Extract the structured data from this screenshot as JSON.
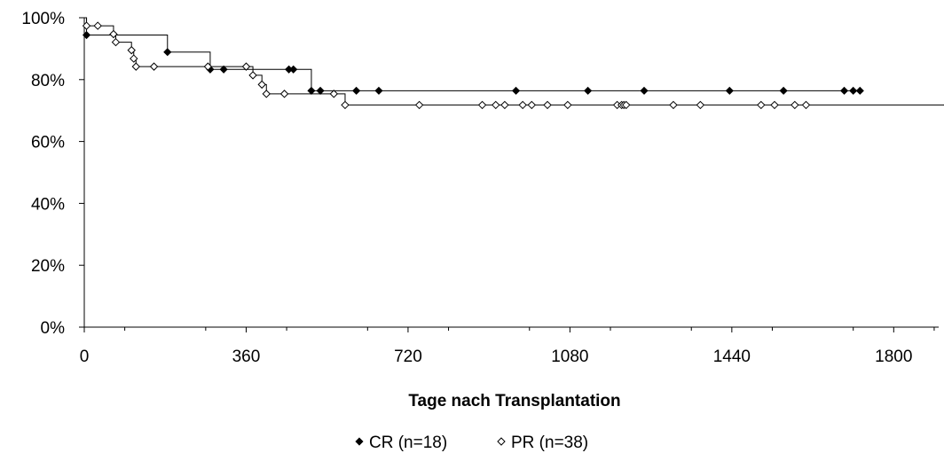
{
  "chart_data": {
    "type": "line",
    "step": true,
    "title": "",
    "xlabel": "Tage nach Transplantation",
    "ylabel": "",
    "xlim": [
      0,
      1900
    ],
    "ylim": [
      0,
      100
    ],
    "x_ticks": [
      0,
      360,
      720,
      1080,
      1440,
      1800
    ],
    "y_ticks": [
      0,
      20,
      40,
      60,
      80,
      100
    ],
    "y_tick_labels": [
      "0%",
      "20%",
      "40%",
      "60%",
      "80%",
      "100%"
    ],
    "grid": false,
    "legend_position": "bottom-center",
    "series": [
      {
        "name": "CR (n=18)",
        "marker": "filled-diamond",
        "color": "#000000",
        "steps": [
          [
            0,
            100
          ],
          [
            5,
            94.4
          ],
          [
            185,
            88.9
          ],
          [
            280,
            83.3
          ],
          [
            505,
            76.4
          ]
        ],
        "end_x": 1725,
        "censored": [
          [
            5,
            94.4
          ],
          [
            185,
            88.9
          ],
          [
            280,
            83.3
          ],
          [
            310,
            83.3
          ],
          [
            455,
            83.3
          ],
          [
            465,
            83.3
          ],
          [
            505,
            76.4
          ],
          [
            525,
            76.4
          ],
          [
            605,
            76.4
          ],
          [
            655,
            76.4
          ],
          [
            960,
            76.4
          ],
          [
            1120,
            76.4
          ],
          [
            1245,
            76.4
          ],
          [
            1435,
            76.4
          ],
          [
            1555,
            76.4
          ],
          [
            1690,
            76.4
          ],
          [
            1710,
            76.4
          ],
          [
            1725,
            76.4
          ]
        ]
      },
      {
        "name": "PR (n=38)",
        "marker": "open-diamond",
        "color": "#000000",
        "steps": [
          [
            0,
            100
          ],
          [
            5,
            97.4
          ],
          [
            65,
            94.7
          ],
          [
            70,
            92.1
          ],
          [
            105,
            89.5
          ],
          [
            110,
            86.8
          ],
          [
            115,
            84.2
          ],
          [
            375,
            81.4
          ],
          [
            395,
            78.4
          ],
          [
            405,
            75.4
          ],
          [
            580,
            71.8
          ]
        ],
        "end_x": 1920,
        "censored": [
          [
            5,
            97.4
          ],
          [
            30,
            97.4
          ],
          [
            65,
            94.7
          ],
          [
            70,
            92.1
          ],
          [
            105,
            89.5
          ],
          [
            110,
            86.8
          ],
          [
            115,
            84.2
          ],
          [
            155,
            84.2
          ],
          [
            275,
            84.2
          ],
          [
            360,
            84.2
          ],
          [
            375,
            81.4
          ],
          [
            395,
            78.4
          ],
          [
            405,
            75.4
          ],
          [
            445,
            75.4
          ],
          [
            555,
            75.4
          ],
          [
            580,
            71.8
          ],
          [
            745,
            71.8
          ],
          [
            885,
            71.8
          ],
          [
            915,
            71.8
          ],
          [
            935,
            71.8
          ],
          [
            975,
            71.8
          ],
          [
            995,
            71.8
          ],
          [
            1030,
            71.8
          ],
          [
            1075,
            71.8
          ],
          [
            1185,
            71.8
          ],
          [
            1195,
            71.8
          ],
          [
            1200,
            71.8
          ],
          [
            1205,
            71.8
          ],
          [
            1310,
            71.8
          ],
          [
            1370,
            71.8
          ],
          [
            1505,
            71.8
          ],
          [
            1535,
            71.8
          ],
          [
            1580,
            71.8
          ],
          [
            1605,
            71.8
          ],
          [
            1920,
            71.8
          ]
        ]
      }
    ]
  }
}
